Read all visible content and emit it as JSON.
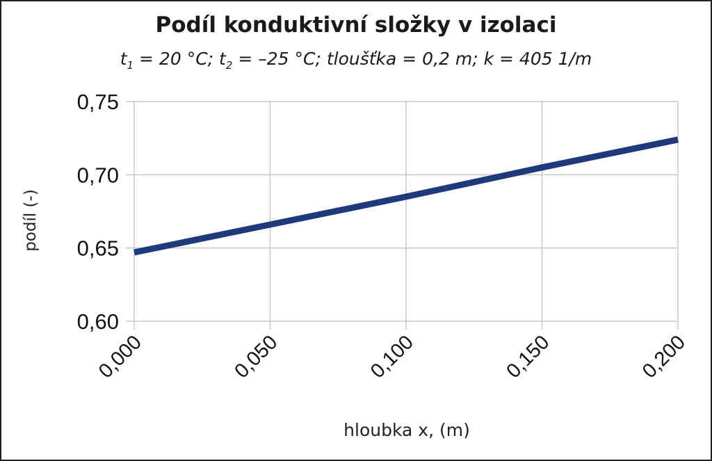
{
  "chart_data": {
    "type": "line",
    "title": "Podíl konduktivní složky v izolaci",
    "subtitle": {
      "t_symbol": "t",
      "sub1": "1",
      "part1": " = 20 °C; ",
      "sub2": "2",
      "part2": " = –25 °C; tloušťka = 0,2 m; k = 405 1/m"
    },
    "xlabel": "hloubka x, (m)",
    "ylabel": "podíl (-)",
    "xlim": [
      0,
      0.2
    ],
    "ylim": [
      0.6,
      0.75
    ],
    "x_ticks": [
      0,
      0.05,
      0.1,
      0.15,
      0.2
    ],
    "x_tick_labels": [
      "0,000",
      "0,050",
      "0,100",
      "0,150",
      "0,200"
    ],
    "y_ticks": [
      0.6,
      0.65,
      0.7,
      0.75
    ],
    "y_tick_labels": [
      "0,60",
      "0,65",
      "0,70",
      "0,75"
    ],
    "grid": true,
    "series": [
      {
        "color": "#1f3a7a",
        "x": [
          0,
          0.05,
          0.1,
          0.15,
          0.2
        ],
        "y": [
          0.647,
          0.666,
          0.685,
          0.705,
          0.724
        ]
      }
    ]
  }
}
